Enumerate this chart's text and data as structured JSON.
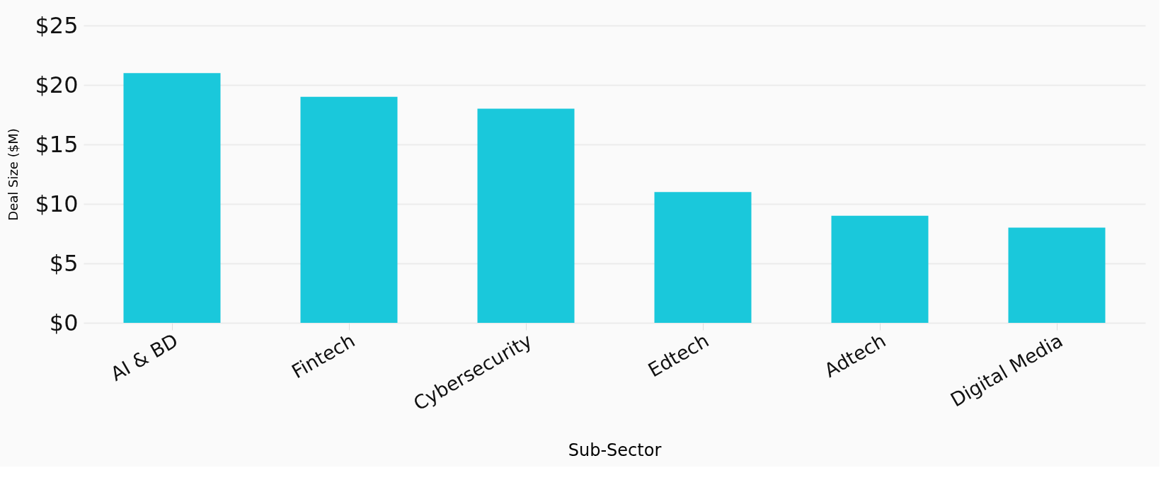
{
  "chart_data": {
    "type": "bar",
    "xlabel": "Sub-Sector",
    "ylabel": "Deal Size ($M)",
    "categories": [
      "AI & BD",
      "Fintech",
      "Cybersecurity",
      "Edtech",
      "Adtech",
      "Digital Media"
    ],
    "values": [
      21,
      19,
      18,
      11,
      9,
      8
    ],
    "color": "#1ac8db",
    "ylim": [
      0,
      25
    ],
    "yticks": [
      {
        "value": 0,
        "label": "$0"
      },
      {
        "value": 5,
        "label": "$5"
      },
      {
        "value": 10,
        "label": "$10"
      },
      {
        "value": 15,
        "label": "$15"
      },
      {
        "value": 20,
        "label": "$20"
      },
      {
        "value": 25,
        "label": "$25"
      }
    ],
    "grid": "y"
  }
}
